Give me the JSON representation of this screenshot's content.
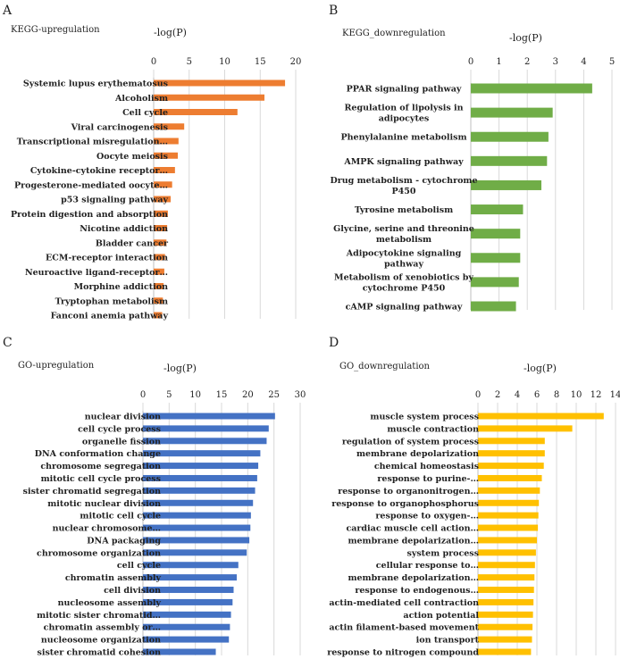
{
  "chart_data": [
    {
      "type": "bar",
      "orientation": "horizontal",
      "panel": "A",
      "title": "KEGG-upregulation",
      "xlabel": "-log(P)",
      "color": "#ED7D31",
      "xlim": [
        0,
        20
      ],
      "xticks": [
        0,
        5,
        10,
        15,
        20
      ],
      "categories": [
        "Systemic lupus erythematosus",
        "Alcoholism",
        "Cell cycle",
        "Viral carcinogenesis",
        "Transcriptional misregulation…",
        "Oocyte meiosis",
        "Cytokine-cytokine receptor…",
        "Progesterone-mediated oocyte…",
        "p53 signaling pathway",
        "Protein digestion and absorption",
        "Nicotine addiction",
        "Bladder cancer",
        "ECM-receptor interaction",
        "Neuroactive ligand-receptor…",
        "Morphine addiction",
        "Tryptophan metabolism",
        "Fanconi anemia pathway"
      ],
      "values": [
        18.5,
        15.6,
        11.8,
        4.3,
        3.5,
        3.4,
        3.0,
        2.6,
        2.4,
        2.0,
        1.9,
        1.8,
        1.6,
        1.5,
        1.4,
        1.3,
        1.2
      ]
    },
    {
      "type": "bar",
      "orientation": "horizontal",
      "panel": "B",
      "title": "KEGG_downregulation",
      "xlabel": "-log(P)",
      "color": "#70AD47",
      "xlim": [
        0,
        5
      ],
      "xticks": [
        0,
        1,
        2,
        3,
        4,
        5
      ],
      "categories": [
        "PPAR signaling pathway",
        "Regulation of lipolysis in adipocytes",
        "Phenylalanine metabolism",
        "AMPK signaling pathway",
        "Drug metabolism - cytochrome P450",
        "Tyrosine metabolism",
        "Glycine, serine and threonine metabolism",
        "Adipocytokine signaling pathway",
        "Metabolism of xenobiotics by cytochrome P450",
        "cAMP signaling pathway"
      ],
      "values": [
        4.3,
        2.9,
        2.75,
        2.7,
        2.5,
        1.85,
        1.75,
        1.75,
        1.7,
        1.6
      ]
    },
    {
      "type": "bar",
      "orientation": "horizontal",
      "panel": "C",
      "title": "GO-upregulation",
      "xlabel": "-log(P)",
      "color": "#4472C4",
      "xlim": [
        0,
        30
      ],
      "xticks": [
        0,
        5,
        10,
        15,
        20,
        25,
        30
      ],
      "categories": [
        "nuclear division",
        "cell cycle process",
        "organelle fission",
        "DNA conformation change",
        "chromosome segregation",
        "mitotic cell cycle process",
        "sister chromatid segregation",
        "mitotic nuclear division",
        "mitotic cell cycle",
        "nuclear chromosome…",
        "DNA packaging",
        "chromosome organization",
        "cell cycle",
        "chromatin assembly",
        "cell division",
        "nucleosome assembly",
        "mitotic sister chromatid…",
        "chromatin assembly or…",
        "nucleosome organization",
        "sister chromatid cohesion"
      ],
      "values": [
        25.2,
        24.0,
        23.6,
        22.4,
        22.0,
        21.8,
        21.4,
        21.0,
        20.6,
        20.5,
        20.3,
        19.8,
        18.2,
        17.9,
        17.3,
        17.1,
        16.8,
        16.6,
        16.4,
        13.9
      ]
    },
    {
      "type": "bar",
      "orientation": "horizontal",
      "panel": "D",
      "title": "GO_downregulation",
      "xlabel": "-log(P)",
      "color": "#FFC000",
      "xlim": [
        0,
        14
      ],
      "xticks": [
        0,
        2,
        4,
        6,
        8,
        10,
        12,
        14
      ],
      "categories": [
        "muscle system process",
        "muscle contraction",
        "regulation of system process",
        "membrane depolarization",
        "chemical homeostasis",
        "response to purine-…",
        "response to organonitrogen…",
        "response to organophosphorus",
        "response to oxygen-…",
        "cardiac muscle cell action…",
        "membrane depolarization…",
        "system process",
        "cellular response to…",
        "membrane depolarization…",
        "response to endogenous…",
        "actin-mediated cell contraction",
        "action potential",
        "actin filament-based movement",
        "ion transport",
        "response to nitrogen compound"
      ],
      "values": [
        12.8,
        9.6,
        6.8,
        6.8,
        6.7,
        6.5,
        6.3,
        6.2,
        6.15,
        6.1,
        6.0,
        5.9,
        5.8,
        5.75,
        5.7,
        5.65,
        5.6,
        5.55,
        5.5,
        5.4
      ]
    }
  ]
}
